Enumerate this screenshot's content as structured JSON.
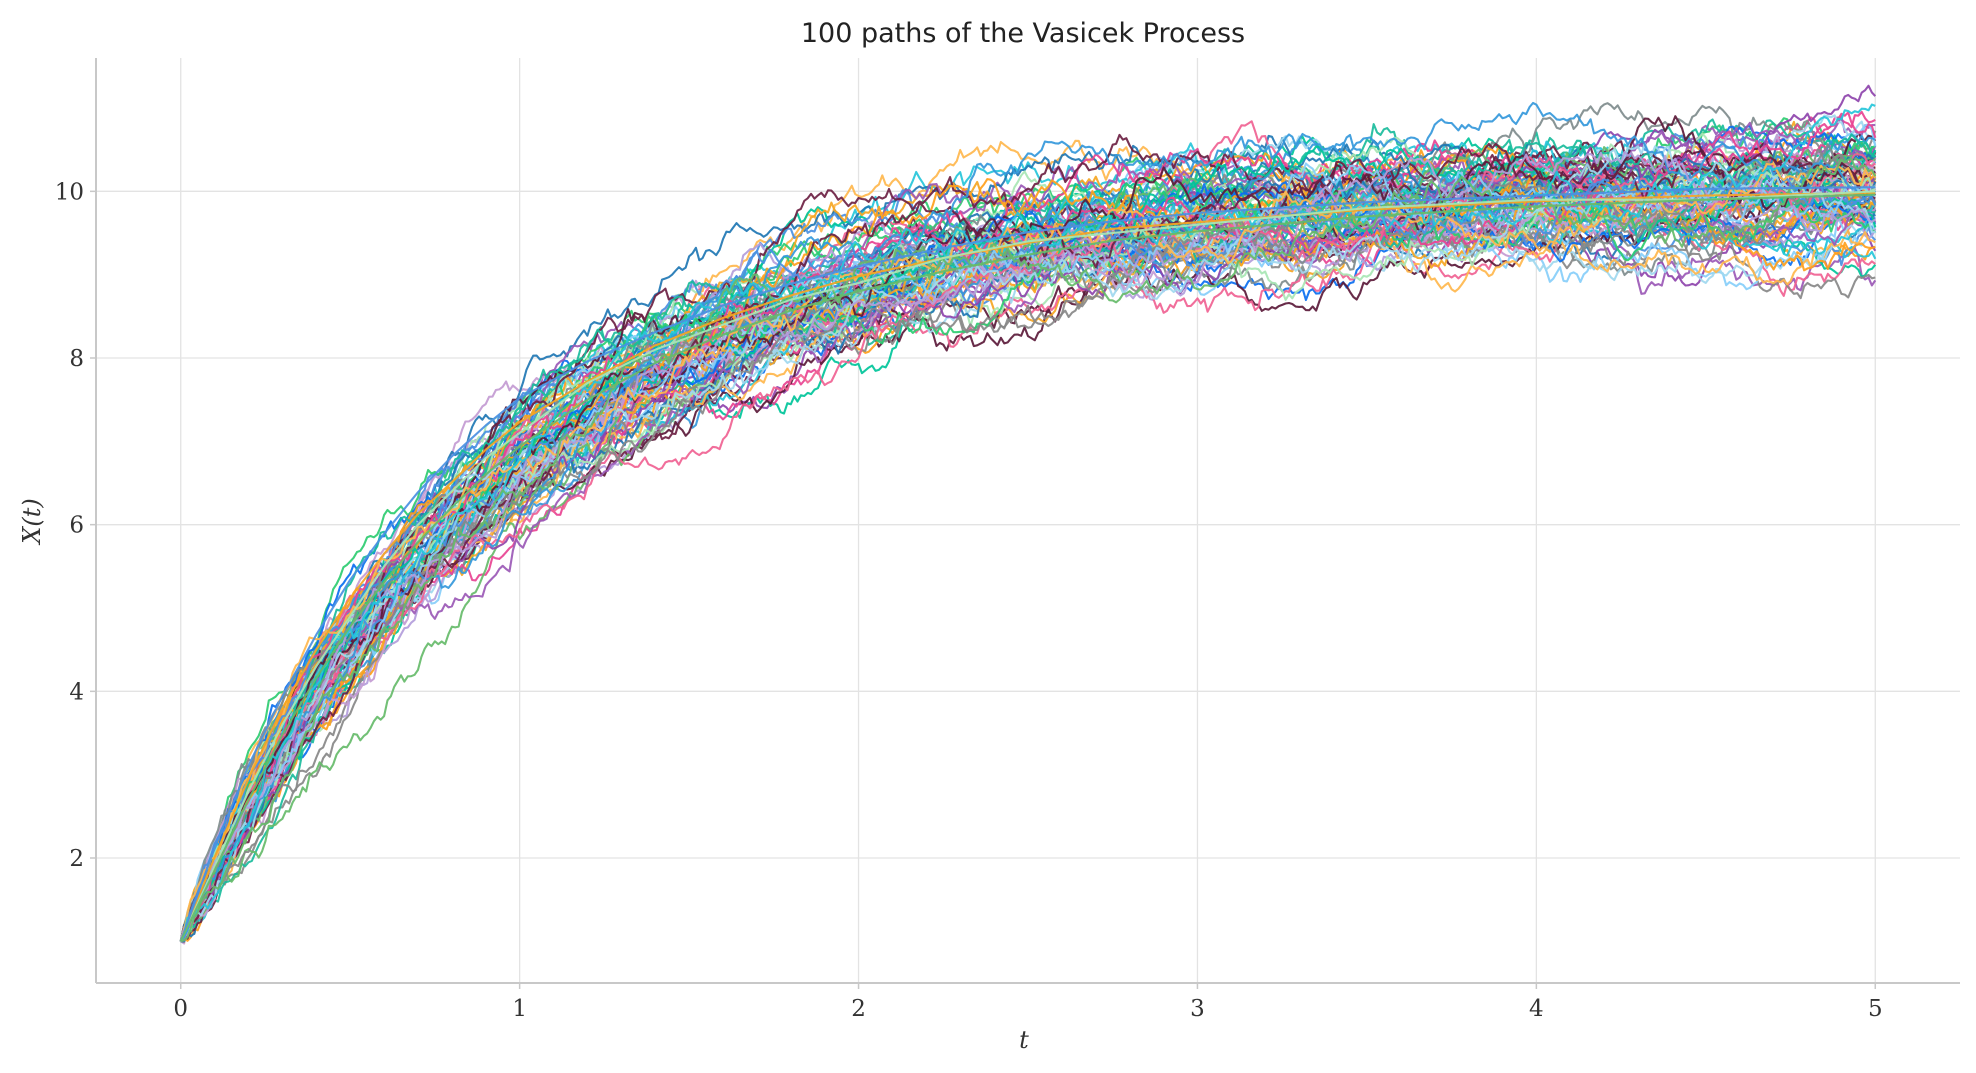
{
  "chart_data": {
    "type": "line",
    "title": "100 paths of the Vasicek Process",
    "xlabel": "t",
    "ylabel": "X(t)",
    "xlim": [
      -0.25,
      5.25
    ],
    "ylim": [
      0.5,
      11.6
    ],
    "x_ticks": [
      0,
      1,
      2,
      3,
      4,
      5
    ],
    "y_ticks": [
      2,
      4,
      6,
      8,
      10
    ],
    "grid": true,
    "legend": "none",
    "n_paths": 100,
    "x": [
      0,
      0.1,
      0.2,
      0.3,
      0.4,
      0.5,
      0.6,
      0.7,
      0.8,
      0.9,
      1.0,
      1.2,
      1.4,
      1.6,
      1.8,
      2.0,
      2.25,
      2.5,
      2.75,
      3.0,
      3.5,
      4.0,
      4.5,
      5.0
    ],
    "palette": [
      "#1f77b4",
      "#0a6ff0",
      "#ff9f1c",
      "#f5a623",
      "#8e44ad",
      "#9b59b6",
      "#c39bd3",
      "#2ecc71",
      "#1abc9c",
      "#00c49a",
      "#a8e6b4",
      "#e84393",
      "#f06292",
      "#7f8c8d",
      "#888888",
      "#5b1a3a",
      "#6d2143",
      "#4a90e2",
      "#87cefa",
      "#a0d8ef",
      "#3498db",
      "#b39ddb",
      "#ffb74d",
      "#26c6da",
      "#66bb6a"
    ],
    "series": [
      {
        "values": [
          1.0,
          2.01,
          2.95,
          3.8,
          4.5,
          5.12,
          5.65,
          6.13,
          6.51,
          6.9,
          7.23,
          7.72,
          8.15,
          8.48,
          8.75,
          8.98,
          9.2,
          9.38,
          9.55,
          9.63,
          9.78,
          9.88,
          9.95,
          9.98
        ]
      },
      {
        "values": [
          1.0,
          1.9,
          2.8,
          3.6,
          4.3,
          4.9,
          5.5,
          6.0,
          6.4,
          6.8,
          7.1,
          7.7,
          8.1,
          8.4,
          8.7,
          8.9,
          9.2,
          9.4,
          9.5,
          9.6,
          9.8,
          9.9,
          9.9,
          10.0
        ]
      },
      {
        "values": [
          1.0,
          2.12,
          3.11,
          3.94,
          4.68,
          5.34,
          5.89,
          6.39,
          6.82,
          7.19,
          7.52,
          7.96,
          8.31,
          8.63,
          8.89,
          9.1,
          9.32,
          9.51,
          9.64,
          9.74,
          9.87,
          9.95,
          10.03,
          10.05
        ]
      },
      {
        "values": [
          1.0,
          1.85,
          2.7,
          3.48,
          4.16,
          4.78,
          5.31,
          5.79,
          6.21,
          6.6,
          6.94,
          7.5,
          7.94,
          8.28,
          8.57,
          8.8,
          9.04,
          9.24,
          9.41,
          9.52,
          9.7,
          9.82,
          9.9,
          9.96
        ]
      }
    ]
  }
}
